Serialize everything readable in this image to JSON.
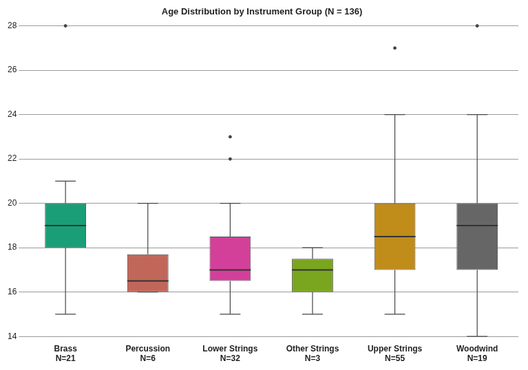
{
  "chart_data": {
    "type": "boxplot",
    "title": "Age Distribution by Instrument Group (N = 136)",
    "categories": [
      "Brass",
      "Percussion",
      "Lower Strings",
      "Other Strings",
      "Upper Strings",
      "Woodwind"
    ],
    "n_labels": [
      "N=21",
      "N=6",
      "N=32",
      "N=3",
      "N=55",
      "N=19"
    ],
    "colors": [
      "#1a9e77",
      "#c0675a",
      "#d3409a",
      "#7aa51f",
      "#c08c1a",
      "#666666"
    ],
    "min": [
      15,
      16,
      15,
      15,
      15,
      14
    ],
    "q1": [
      18,
      16,
      16.5,
      16,
      17,
      17
    ],
    "median": [
      19,
      16.5,
      17,
      17,
      18.5,
      19
    ],
    "q3": [
      20,
      17.7,
      18.5,
      17.5,
      20,
      20
    ],
    "max": [
      21,
      20,
      20,
      18,
      24,
      24
    ],
    "outliers": [
      [
        28
      ],
      [],
      [
        22,
        23
      ],
      [],
      [
        27
      ],
      [
        28
      ]
    ],
    "ylim": [
      14,
      28
    ],
    "yticks": [
      14,
      16,
      18,
      20,
      22,
      24,
      26,
      28
    ],
    "grid": true
  }
}
